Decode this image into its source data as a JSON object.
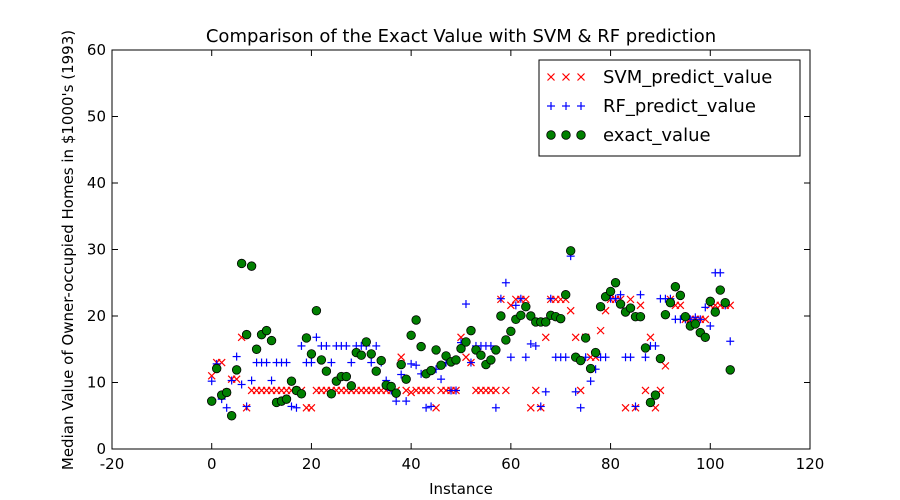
{
  "chart_data": {
    "type": "scatter",
    "title": "Comparison of the Exact Value with SVM & RF prediction",
    "xlabel": "Instance",
    "ylabel": "Median Value of Owner-occupied Homes in $1000's (1993)",
    "xlim": [
      -20,
      120
    ],
    "ylim": [
      0,
      60
    ],
    "xticks": [
      -20,
      0,
      20,
      40,
      60,
      80,
      100,
      120
    ],
    "yticks": [
      0,
      10,
      20,
      30,
      40,
      50,
      60
    ],
    "grid": false,
    "legend_position": "top-right",
    "series": [
      {
        "name": "SVM_predict_value",
        "marker": "x",
        "color": "#ff0000",
        "x": [
          0,
          1,
          2,
          3,
          4,
          5,
          6,
          7,
          8,
          9,
          10,
          11,
          12,
          13,
          14,
          15,
          16,
          17,
          18,
          19,
          20,
          21,
          22,
          23,
          24,
          25,
          26,
          27,
          28,
          29,
          30,
          31,
          32,
          33,
          34,
          35,
          36,
          37,
          38,
          39,
          40,
          41,
          42,
          43,
          44,
          45,
          46,
          47,
          48,
          49,
          50,
          51,
          52,
          53,
          54,
          55,
          56,
          57,
          58,
          59,
          60,
          61,
          62,
          63,
          64,
          65,
          66,
          67,
          68,
          69,
          70,
          71,
          72,
          73,
          74,
          75,
          76,
          77,
          78,
          79,
          80,
          81,
          82,
          83,
          84,
          85,
          86,
          87,
          88,
          89,
          90,
          91,
          92,
          93,
          94,
          95,
          96,
          97,
          98,
          99,
          100,
          101,
          102,
          103,
          104
        ],
        "y": [
          11,
          13,
          13,
          8.5,
          10.5,
          10.5,
          16.8,
          6.2,
          8.8,
          8.8,
          8.8,
          8.8,
          8.8,
          8.8,
          8.8,
          8.8,
          8.8,
          8.8,
          8.8,
          6.2,
          6.2,
          8.8,
          8.8,
          8.8,
          8.8,
          8.8,
          8.8,
          8.8,
          8.8,
          8.8,
          8.8,
          8.8,
          8.8,
          8.8,
          8.8,
          8.8,
          8.8,
          8.8,
          13.8,
          8.8,
          8.5,
          8.8,
          8.8,
          8.8,
          8.8,
          6.2,
          8.8,
          8.8,
          8.8,
          8.8,
          16.8,
          13.8,
          13,
          8.8,
          8.8,
          8.8,
          8.8,
          8.8,
          22.5,
          8.8,
          21.6,
          22.5,
          22.5,
          22.5,
          6.2,
          8.8,
          6.2,
          16.8,
          22.5,
          22.5,
          22.5,
          22.5,
          20.8,
          16.8,
          8.8,
          16.8,
          13.8,
          13.8,
          17.8,
          20.8,
          22.5,
          22.5,
          22.5,
          6.2,
          22.5,
          6.2,
          21.6,
          8.8,
          16.8,
          6.2,
          8.8,
          12.5,
          22.5,
          21.6,
          21.6,
          19.5,
          19.5,
          19.5,
          19.5,
          19.5,
          21.6,
          21.6,
          21.6,
          21.6,
          21.6
        ]
      },
      {
        "name": "RF_predict_value",
        "marker": "+",
        "color": "#0000ff",
        "x": [
          0,
          1,
          2,
          3,
          4,
          5,
          6,
          7,
          8,
          9,
          10,
          11,
          12,
          13,
          14,
          15,
          16,
          17,
          18,
          19,
          20,
          21,
          22,
          23,
          24,
          25,
          26,
          27,
          28,
          29,
          30,
          31,
          32,
          33,
          34,
          35,
          36,
          37,
          38,
          39,
          40,
          41,
          42,
          43,
          44,
          45,
          46,
          47,
          48,
          49,
          50,
          51,
          52,
          53,
          54,
          55,
          56,
          57,
          58,
          59,
          60,
          61,
          62,
          63,
          64,
          65,
          66,
          67,
          68,
          69,
          70,
          71,
          72,
          73,
          74,
          75,
          76,
          77,
          78,
          79,
          80,
          81,
          82,
          83,
          84,
          85,
          86,
          87,
          88,
          89,
          90,
          91,
          92,
          93,
          94,
          95,
          96,
          97,
          98,
          99,
          100,
          101,
          102,
          103,
          104
        ],
        "y": [
          10.2,
          12.8,
          7.5,
          6.2,
          10.3,
          13.9,
          9.7,
          6.4,
          10.3,
          13,
          13,
          13,
          10.3,
          13,
          13,
          13,
          6.4,
          6.2,
          15.5,
          13,
          13,
          16.8,
          15.5,
          15.5,
          13,
          15.5,
          15.5,
          15.5,
          13,
          15.5,
          15.5,
          15.5,
          13,
          15.5,
          13,
          10.3,
          8.8,
          7.2,
          11.2,
          7.2,
          12.8,
          12.6,
          11.3,
          6.2,
          6.4,
          12,
          10.5,
          13,
          8.8,
          8.8,
          16,
          21.8,
          13,
          15.5,
          15.5,
          15.5,
          15.5,
          6.2,
          22.6,
          25,
          13.8,
          21.6,
          22.6,
          13.8,
          15.8,
          15.5,
          6.4,
          8.6,
          22.6,
          13.8,
          13.8,
          13.8,
          29,
          8.6,
          6.2,
          13.8,
          10.2,
          12,
          13.8,
          13.8,
          22.6,
          22.6,
          23.2,
          13.8,
          13.8,
          6.4,
          23.2,
          13.8,
          15.5,
          15.5,
          22.6,
          22.6,
          22.6,
          19.5,
          19.5,
          19.5,
          19.5,
          19.8,
          19.5,
          21.3,
          18.5,
          26.5,
          26.5,
          21.6,
          16.2
        ]
      },
      {
        "name": "exact_value",
        "marker": "o",
        "color": "#008000",
        "x": [
          0,
          1,
          2,
          3,
          4,
          5,
          6,
          7,
          8,
          9,
          10,
          11,
          12,
          13,
          14,
          15,
          16,
          17,
          18,
          19,
          20,
          21,
          22,
          23,
          24,
          25,
          26,
          27,
          28,
          29,
          30,
          31,
          32,
          33,
          34,
          35,
          36,
          37,
          38,
          39,
          40,
          41,
          42,
          43,
          44,
          45,
          46,
          47,
          48,
          49,
          50,
          51,
          52,
          53,
          54,
          55,
          56,
          57,
          58,
          59,
          60,
          61,
          62,
          63,
          64,
          65,
          66,
          67,
          68,
          69,
          70,
          71,
          72,
          73,
          74,
          75,
          76,
          77,
          78,
          79,
          80,
          81,
          82,
          83,
          84,
          85,
          86,
          87,
          88,
          89,
          90,
          91,
          92,
          93,
          94,
          95,
          96,
          97,
          98,
          99,
          100,
          101,
          102,
          103,
          104
        ],
        "y": [
          7.2,
          12.1,
          8.1,
          8.5,
          5,
          11.9,
          27.9,
          17.2,
          27.5,
          15,
          17.2,
          17.8,
          16.3,
          7,
          7.2,
          7.5,
          10.2,
          8.8,
          8.3,
          16.7,
          14.3,
          20.8,
          13.4,
          11.7,
          8.3,
          10.2,
          10.9,
          10.9,
          9.5,
          14.5,
          14.1,
          16.1,
          14.3,
          11.7,
          13.3,
          9.6,
          9.4,
          8.4,
          12.7,
          10.5,
          17.1,
          19.4,
          15.4,
          11.3,
          11.8,
          14.9,
          12.6,
          14,
          13.1,
          13.4,
          15.1,
          16.1,
          17.8,
          14.9,
          14.1,
          12.7,
          13.4,
          14.9,
          20,
          16.4,
          17.7,
          19.5,
          20.1,
          21.4,
          20,
          19.1,
          19.1,
          19.1,
          20.1,
          19.9,
          19.6,
          23.2,
          29.8,
          13.8,
          13.3,
          16.7,
          12.1,
          14.5,
          21.4,
          22.9,
          23.7,
          25,
          21.8,
          20.6,
          21.2,
          19.9,
          19.9,
          15.2,
          7,
          8.1,
          13.6,
          20.2,
          22,
          24.4,
          23.1,
          19.9,
          18.5,
          18.8,
          17.5,
          16.8,
          22.2,
          20.6,
          23.9,
          22,
          11.9
        ]
      }
    ]
  }
}
